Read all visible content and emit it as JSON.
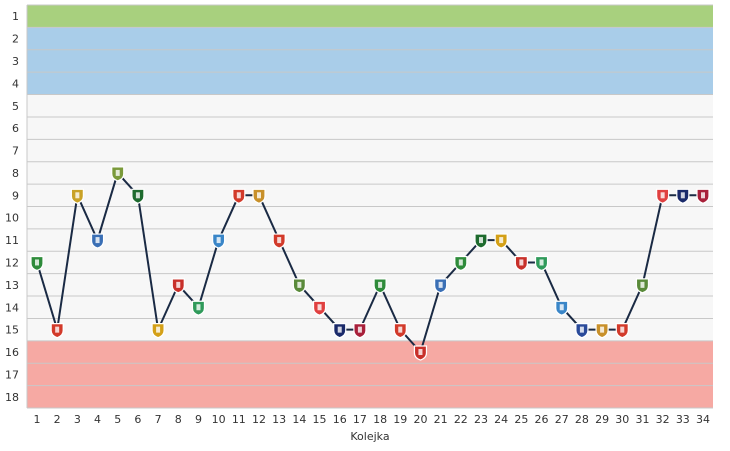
{
  "chart_data": {
    "type": "line",
    "xlabel": "Kolejka",
    "ylabel": "",
    "x": [
      1,
      2,
      3,
      4,
      5,
      6,
      7,
      8,
      9,
      10,
      11,
      12,
      13,
      14,
      15,
      16,
      17,
      18,
      19,
      20,
      21,
      22,
      23,
      24,
      25,
      26,
      27,
      28,
      29,
      30,
      31,
      32,
      33,
      34
    ],
    "series": [
      {
        "values": [
          12,
          15,
          9,
          11,
          8,
          9,
          15,
          13,
          14,
          11,
          9,
          9,
          11,
          13,
          14,
          15,
          15,
          13,
          15,
          16,
          13,
          12,
          11,
          11,
          12,
          12,
          14,
          15,
          15,
          15,
          13,
          9,
          9,
          9
        ]
      }
    ],
    "xlim": [
      1,
      34
    ],
    "ylim": [
      1,
      18
    ],
    "y_inverted": true,
    "yticks": [
      1,
      2,
      3,
      4,
      5,
      6,
      7,
      8,
      9,
      10,
      11,
      12,
      13,
      14,
      15,
      16,
      17,
      18
    ],
    "bands": [
      {
        "from": 1,
        "to": 1,
        "color": "#a8d07e"
      },
      {
        "from": 2,
        "to": 4,
        "color": "#a9cde9"
      },
      {
        "from": 5,
        "to": 15,
        "color": "#f7f7f7"
      },
      {
        "from": 16,
        "to": 18,
        "color": "#f6a9a3"
      }
    ],
    "line_color": "#1a2a44",
    "grid": true,
    "marker_colors": [
      "#2e8b3a",
      "#d23a2a",
      "#c9a227",
      "#3a6fb5",
      "#7a9a3a",
      "#1e6b2e",
      "#d4a017",
      "#c8302a",
      "#2f9a5a",
      "#3a86c8",
      "#d23a2a",
      "#c8902a",
      "#d23a2a",
      "#5a8a3a",
      "#e04040",
      "#1a2a6a",
      "#a8203a",
      "#2e8b3a",
      "#d23a2a",
      "#c8302a",
      "#3a6fb5",
      "#2e8b3a",
      "#1e6b2e",
      "#d4a017",
      "#c8302a",
      "#2f9a5a",
      "#3a86c8",
      "#2a4a9a",
      "#c8902a",
      "#d23a2a",
      "#5a8a3a",
      "#e04040",
      "#1a2a6a",
      "#a8203a"
    ]
  }
}
